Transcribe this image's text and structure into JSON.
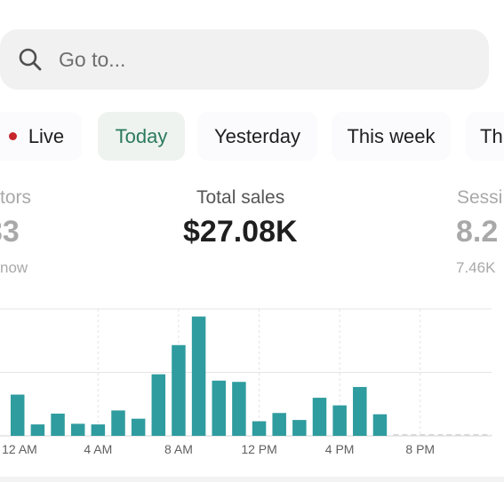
{
  "search": {
    "placeholder": "Go to...",
    "icon": "search-icon"
  },
  "tabs": [
    {
      "label": "Live",
      "has_dot": true,
      "dot_color": "#c6252b"
    },
    {
      "label": "Today",
      "active": true
    },
    {
      "label": "Yesterday"
    },
    {
      "label": "This week"
    },
    {
      "label": "Th"
    }
  ],
  "metrics": {
    "left": {
      "label": "tors",
      "value": "33",
      "sub": "now"
    },
    "center": {
      "label": "Total sales",
      "value": "$27.08K"
    },
    "right": {
      "label": "Sessi",
      "value": "8.2",
      "sub": "7.46K"
    }
  },
  "colors": {
    "accent": "#2b7a5c",
    "bar": "#2f9c9f",
    "live": "#c6252b"
  },
  "chart_data": {
    "type": "bar",
    "x_tick_labels": [
      "12 AM",
      "4 AM",
      "8 AM",
      "12 PM",
      "4 PM",
      "8 PM"
    ],
    "values": [
      0.65,
      0.18,
      0.35,
      0.19,
      0.18,
      0.4,
      0.27,
      0.97,
      1.43,
      1.88,
      0.87,
      0.85,
      0.23,
      0.36,
      0.25,
      0.6,
      0.48,
      0.77,
      0.34
    ],
    "ylim": [
      0,
      2
    ],
    "grid": true
  }
}
